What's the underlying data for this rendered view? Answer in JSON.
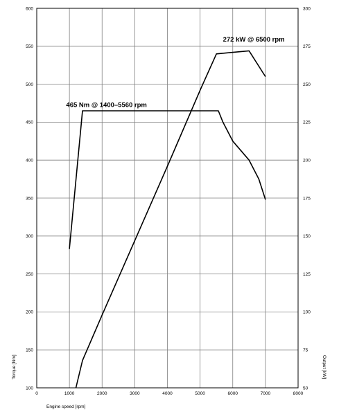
{
  "chart_data": {
    "type": "line",
    "xlabel": "Engine speed [rpm]",
    "ylabel_left": "Torque [Nm]",
    "ylabel_right": "Output [kW]",
    "xlim": [
      0,
      8000
    ],
    "ylim_left": [
      100,
      600
    ],
    "ylim_right": [
      50,
      300
    ],
    "x_ticks": [
      "0",
      "1000",
      "2000",
      "3000",
      "4000",
      "5000",
      "6000",
      "7000",
      "8000"
    ],
    "y_ticks_left": [
      "100",
      "150",
      "200",
      "250",
      "300",
      "350",
      "400",
      "450",
      "500",
      "550",
      "600"
    ],
    "y_ticks_right": [
      "50",
      "75",
      "100",
      "125",
      "150",
      "175",
      "200",
      "225",
      "250",
      "275",
      "300"
    ],
    "grid": true,
    "series": [
      {
        "name": "Torque",
        "axis": "left",
        "x": [
          1000,
          1400,
          5560,
          5700,
          6000,
          6500,
          6800,
          7000
        ],
        "y": [
          283,
          465,
          465,
          450,
          425,
          400,
          375,
          348
        ]
      },
      {
        "name": "Output",
        "axis": "right",
        "x": [
          1200,
          1400,
          2000,
          3000,
          4000,
          5000,
          5500,
          6000,
          6500,
          7000
        ],
        "y": [
          50,
          68,
          98,
          147,
          196,
          246,
          270,
          271,
          272,
          255
        ]
      }
    ],
    "annotations": [
      {
        "text": "465 Nm @ 1400–5560 rpm",
        "x": 900,
        "y": 470,
        "axis": "left"
      },
      {
        "text": "272 kW @ 6500 rpm",
        "x": 5700,
        "y": 278,
        "axis": "right"
      }
    ]
  }
}
